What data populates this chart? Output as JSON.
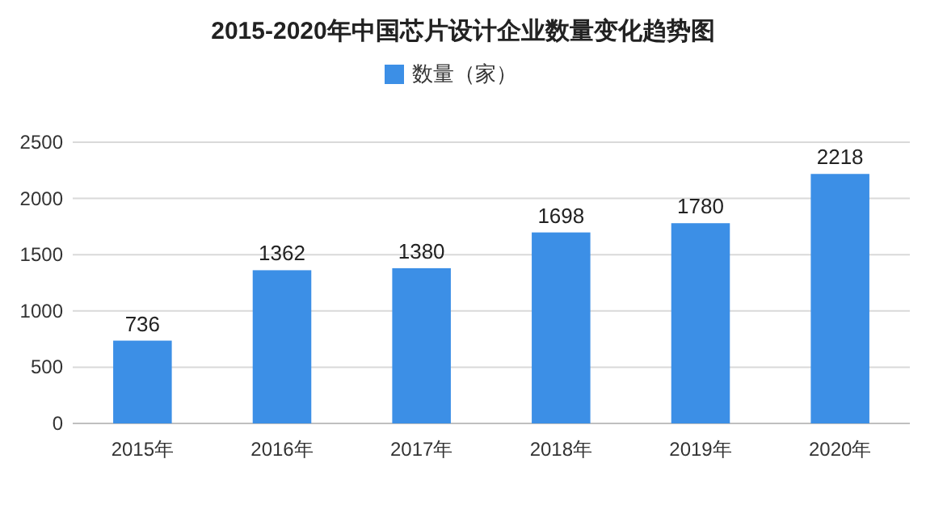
{
  "chart_data": {
    "type": "bar",
    "title": "2015-2020年中国芯片设计企业数量变化趋势图",
    "categories": [
      "2015年",
      "2016年",
      "2017年",
      "2018年",
      "2019年",
      "2020年"
    ],
    "series": [
      {
        "name": "数量（家）",
        "color": "#3c8fe6",
        "values": [
          736,
          1362,
          1380,
          1698,
          1780,
          2218
        ]
      }
    ],
    "ylim": [
      0,
      2500
    ],
    "yticks": [
      0,
      500,
      1000,
      1500,
      2000,
      2500
    ],
    "grid": "y",
    "legend": "top",
    "data_labels": true
  }
}
